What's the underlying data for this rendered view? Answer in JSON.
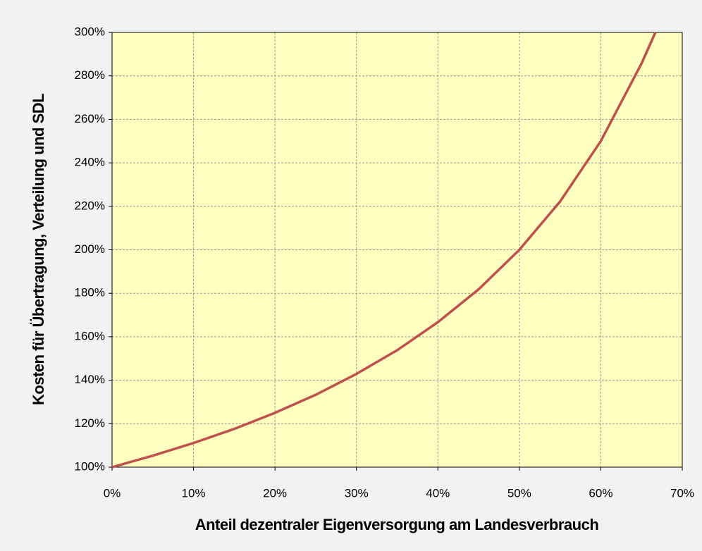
{
  "chart_data": {
    "type": "line",
    "xlabel": "Anteil dezentraler Eigenversorgung am Landesverbrauch",
    "ylabel": "Kosten für Übertragung, Verteilung und SDL",
    "x": [
      0,
      5,
      10,
      15,
      20,
      25,
      30,
      35,
      40,
      45,
      50,
      55,
      60,
      65,
      66.7
    ],
    "series": [
      {
        "color": "#c0504d",
        "values": [
          100,
          105.3,
          111.1,
          117.6,
          125,
          133.3,
          142.9,
          153.8,
          166.7,
          181.8,
          200,
          222.2,
          250,
          285.7,
          300
        ]
      }
    ],
    "xlim": [
      0,
      70
    ],
    "xticks": [
      {
        "value": 0,
        "label": "0%"
      },
      {
        "value": 10,
        "label": "10%"
      },
      {
        "value": 20,
        "label": "20%"
      },
      {
        "value": 30,
        "label": "30%"
      },
      {
        "value": 40,
        "label": "40%"
      },
      {
        "value": 50,
        "label": "50%"
      },
      {
        "value": 60,
        "label": "60%"
      },
      {
        "value": 70,
        "label": "70%"
      }
    ],
    "ylim": [
      100,
      300
    ],
    "yticks": [
      {
        "value": 100,
        "label": "100%"
      },
      {
        "value": 120,
        "label": "120%"
      },
      {
        "value": 140,
        "label": "140%"
      },
      {
        "value": 160,
        "label": "160%"
      },
      {
        "value": 180,
        "label": "180%"
      },
      {
        "value": 200,
        "label": "200%"
      },
      {
        "value": 220,
        "label": "220%"
      },
      {
        "value": 240,
        "label": "240%"
      },
      {
        "value": 260,
        "label": "260%"
      },
      {
        "value": 280,
        "label": "280%"
      },
      {
        "value": 300,
        "label": "300%"
      }
    ],
    "grid": true
  }
}
